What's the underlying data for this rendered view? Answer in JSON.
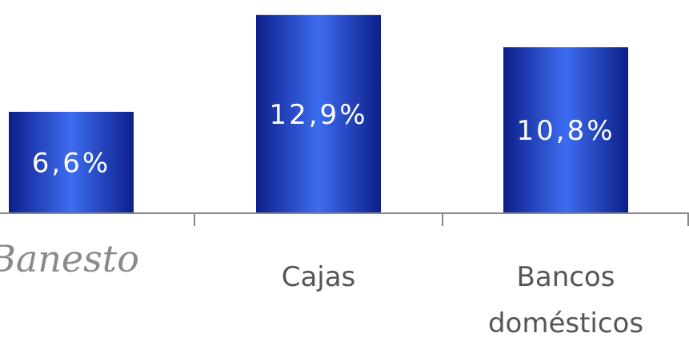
{
  "chart_data": {
    "type": "bar",
    "categories": [
      "Banesto",
      "Cajas",
      "Bancos domésticos"
    ],
    "category_lines": [
      [
        "Banesto"
      ],
      [
        "Cajas"
      ],
      [
        "Bancos",
        "domésticos"
      ]
    ],
    "values": [
      6.6,
      12.9,
      10.8
    ],
    "value_labels": [
      "6,6%",
      "12,9%",
      "10,8%"
    ],
    "title": "",
    "xlabel": "",
    "ylabel": "",
    "ylim": [
      0,
      13.2
    ],
    "grid": false,
    "legend": "none",
    "first_category_rendered_as": "logo"
  },
  "colors": {
    "bar_edge": "#0d1f8a",
    "bar_center": "#3d6cf0",
    "axis": "#888888",
    "category_text": "#555555",
    "logo_text": "#8a8a8a",
    "value_text": "#ffffff"
  }
}
